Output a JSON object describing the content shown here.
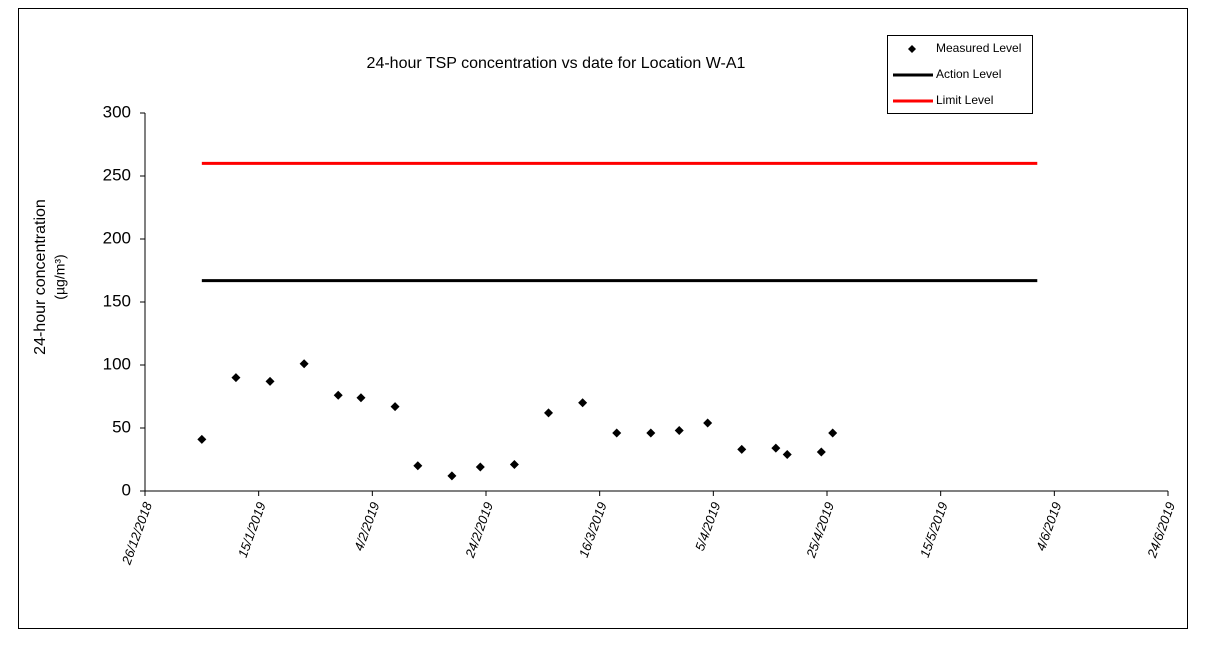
{
  "chart_data": {
    "type": "scatter",
    "title": "24-hour TSP concentration vs date for Location W-A1",
    "ylabel": [
      "24-hour concentration",
      "(µg/m³)"
    ],
    "xlim": [
      "26/12/2018",
      "24/6/2019"
    ],
    "xticks": [
      "26/12/2018",
      "15/1/2019",
      "4/2/2019",
      "24/2/2019",
      "16/3/2019",
      "5/4/2019",
      "25/4/2019",
      "15/5/2019",
      "4/6/2019",
      "24/6/2019"
    ],
    "ylim": [
      0,
      300
    ],
    "yticks": [
      0,
      50,
      100,
      150,
      200,
      250,
      300
    ],
    "grid": false,
    "legend": "top-right",
    "series": [
      {
        "name": "Measured Level",
        "type": "scatter",
        "color": "#000000",
        "x": [
          "5/1/2019",
          "11/1/2019",
          "17/1/2019",
          "23/1/2019",
          "29/1/2019",
          "2/2/2019",
          "8/2/2019",
          "12/2/2019",
          "18/2/2019",
          "23/2/2019",
          "1/3/2019",
          "7/3/2019",
          "13/3/2019",
          "19/3/2019",
          "25/3/2019",
          "30/3/2019",
          "4/4/2019",
          "10/4/2019",
          "16/4/2019",
          "18/4/2019",
          "24/4/2019",
          "26/4/2019"
        ],
        "values": [
          41,
          90,
          87,
          101,
          76,
          74,
          67,
          20,
          12,
          19,
          21,
          62,
          70,
          46,
          46,
          48,
          54,
          33,
          34,
          29,
          31,
          46
        ]
      },
      {
        "name": "Action Level",
        "type": "line",
        "color": "#000000",
        "x": [
          "5/1/2019",
          "1/6/2019"
        ],
        "values": [
          167,
          167
        ]
      },
      {
        "name": "Limit Level",
        "type": "line",
        "color": "#ff0000",
        "x": [
          "5/1/2019",
          "1/6/2019"
        ],
        "values": [
          260,
          260
        ]
      }
    ]
  }
}
